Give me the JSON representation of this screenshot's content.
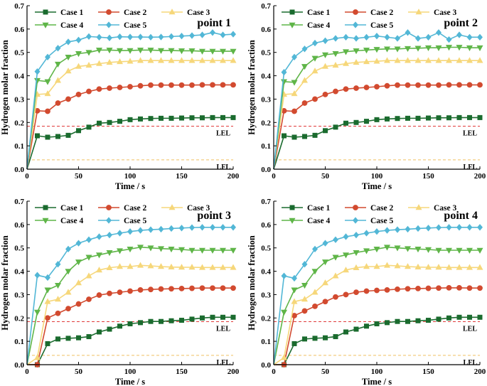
{
  "colors": {
    "Case 1": "#1a6b2e",
    "Case 2": "#d24a2f",
    "Case 3": "#f6d77a",
    "Case 4": "#5fb548",
    "Case 5": "#52b7d6",
    "LEL": "#e03a3a",
    "LFL": "#f0c060"
  },
  "chart_data": [
    {
      "type": "line",
      "title": "point 1",
      "xlabel": "Time / s",
      "ylabel": "Hydrogen molar fraction",
      "xlim": [
        0,
        200
      ],
      "ylim": [
        0,
        0.7
      ],
      "xticks": [
        0,
        50,
        100,
        150,
        200
      ],
      "yticks": [
        0,
        0.1,
        0.2,
        0.3,
        0.4,
        0.5,
        0.6,
        0.7
      ],
      "grid": false,
      "legend": "top, two rows",
      "x": [
        0,
        10,
        20,
        30,
        40,
        50,
        60,
        70,
        80,
        90,
        100,
        110,
        120,
        130,
        140,
        150,
        160,
        170,
        180,
        190,
        200
      ],
      "series": [
        {
          "name": "Case 1",
          "marker": "square",
          "values": [
            0,
            0.143,
            0.137,
            0.14,
            0.145,
            0.165,
            0.18,
            0.197,
            0.2,
            0.205,
            0.212,
            0.215,
            0.217,
            0.218,
            0.218,
            0.219,
            0.22,
            0.22,
            0.221,
            0.221,
            0.221
          ]
        },
        {
          "name": "Case 2",
          "marker": "circle",
          "values": [
            0,
            0.25,
            0.248,
            0.283,
            0.3,
            0.32,
            0.333,
            0.343,
            0.347,
            0.35,
            0.353,
            0.357,
            0.36,
            0.36,
            0.36,
            0.36,
            0.36,
            0.361,
            0.361,
            0.361,
            0.361
          ]
        },
        {
          "name": "Case 3",
          "marker": "triangle-up",
          "values": [
            0,
            0.32,
            0.323,
            0.38,
            0.42,
            0.44,
            0.445,
            0.452,
            0.457,
            0.46,
            0.462,
            0.465,
            0.465,
            0.465,
            0.465,
            0.465,
            0.465,
            0.465,
            0.465,
            0.465,
            0.465
          ]
        },
        {
          "name": "Case 4",
          "marker": "triangle-down",
          "values": [
            0,
            0.38,
            0.375,
            0.45,
            0.48,
            0.495,
            0.5,
            0.51,
            0.51,
            0.508,
            0.508,
            0.51,
            0.51,
            0.508,
            0.508,
            0.507,
            0.507,
            0.505,
            0.505,
            0.505,
            0.505
          ]
        },
        {
          "name": "Case 5",
          "marker": "diamond",
          "values": [
            0,
            0.418,
            0.48,
            0.518,
            0.545,
            0.553,
            0.568,
            0.565,
            0.562,
            0.567,
            0.566,
            0.566,
            0.565,
            0.566,
            0.568,
            0.57,
            0.572,
            0.575,
            0.585,
            0.575,
            0.578
          ]
        }
      ],
      "reference_lines": [
        {
          "label": "LEL",
          "value": 0.184
        },
        {
          "label": "LFL",
          "value": 0.04
        }
      ]
    },
    {
      "type": "line",
      "title": "point 2",
      "xlabel": "Time / s",
      "ylabel": "Hydrogen molar fraction",
      "xlim": [
        0,
        200
      ],
      "ylim": [
        0,
        0.7
      ],
      "xticks": [
        0,
        50,
        100,
        150,
        200
      ],
      "yticks": [
        0,
        0.1,
        0.2,
        0.3,
        0.4,
        0.5,
        0.6,
        0.7
      ],
      "grid": false,
      "legend": "top, two rows",
      "x": [
        0,
        10,
        20,
        30,
        40,
        50,
        60,
        70,
        80,
        90,
        100,
        110,
        120,
        130,
        140,
        150,
        160,
        170,
        180,
        190,
        200
      ],
      "series": [
        {
          "name": "Case 1",
          "marker": "square",
          "values": [
            0,
            0.143,
            0.137,
            0.14,
            0.145,
            0.165,
            0.18,
            0.197,
            0.2,
            0.205,
            0.212,
            0.215,
            0.217,
            0.218,
            0.218,
            0.219,
            0.22,
            0.22,
            0.221,
            0.221,
            0.221
          ]
        },
        {
          "name": "Case 2",
          "marker": "circle",
          "values": [
            0,
            0.25,
            0.248,
            0.283,
            0.3,
            0.32,
            0.333,
            0.343,
            0.347,
            0.35,
            0.353,
            0.357,
            0.36,
            0.36,
            0.36,
            0.36,
            0.36,
            0.361,
            0.361,
            0.361,
            0.361
          ]
        },
        {
          "name": "Case 3",
          "marker": "triangle-up",
          "values": [
            0,
            0.32,
            0.323,
            0.38,
            0.42,
            0.44,
            0.445,
            0.452,
            0.457,
            0.46,
            0.462,
            0.465,
            0.465,
            0.465,
            0.465,
            0.465,
            0.465,
            0.465,
            0.465,
            0.465,
            0.465
          ]
        },
        {
          "name": "Case 4",
          "marker": "triangle-down",
          "values": [
            0,
            0.375,
            0.372,
            0.44,
            0.475,
            0.49,
            0.495,
            0.503,
            0.507,
            0.51,
            0.513,
            0.515,
            0.515,
            0.517,
            0.518,
            0.52,
            0.52,
            0.522,
            0.522,
            0.52,
            0.52
          ]
        },
        {
          "name": "Case 5",
          "marker": "diamond",
          "values": [
            0,
            0.415,
            0.48,
            0.515,
            0.54,
            0.55,
            0.56,
            0.565,
            0.56,
            0.565,
            0.57,
            0.565,
            0.56,
            0.585,
            0.56,
            0.565,
            0.585,
            0.555,
            0.575,
            0.565,
            0.565
          ]
        }
      ],
      "reference_lines": [
        {
          "label": "LEL",
          "value": 0.184
        },
        {
          "label": "LFL",
          "value": 0.04
        }
      ]
    },
    {
      "type": "line",
      "title": "point 3",
      "xlabel": "Time / s",
      "ylabel": "Hydrogen molar fraction",
      "xlim": [
        0,
        200
      ],
      "ylim": [
        0,
        0.7
      ],
      "xticks": [
        0,
        50,
        100,
        150,
        200
      ],
      "yticks": [
        0,
        0.1,
        0.2,
        0.3,
        0.4,
        0.5,
        0.6,
        0.7
      ],
      "grid": false,
      "legend": "top, two rows",
      "x": [
        0,
        10,
        20,
        30,
        40,
        50,
        60,
        70,
        80,
        90,
        100,
        110,
        120,
        130,
        140,
        150,
        160,
        170,
        180,
        190,
        200
      ],
      "series": [
        {
          "name": "Case 1",
          "marker": "square",
          "values": [
            0,
            0,
            0.09,
            0.11,
            0.113,
            0.115,
            0.12,
            0.14,
            0.152,
            0.165,
            0.175,
            0.18,
            0.185,
            0.185,
            0.188,
            0.19,
            0.195,
            0.2,
            0.203,
            0.203,
            0.203
          ]
        },
        {
          "name": "Case 2",
          "marker": "circle",
          "values": [
            0,
            0,
            0.2,
            0.22,
            0.24,
            0.26,
            0.28,
            0.298,
            0.305,
            0.31,
            0.315,
            0.32,
            0.322,
            0.324,
            0.325,
            0.326,
            0.327,
            0.328,
            0.328,
            0.328,
            0.328
          ]
        },
        {
          "name": "Case 3",
          "marker": "triangle-up",
          "values": [
            0,
            0.03,
            0.27,
            0.28,
            0.31,
            0.35,
            0.38,
            0.405,
            0.415,
            0.42,
            0.42,
            0.425,
            0.423,
            0.42,
            0.418,
            0.417,
            0.417,
            0.416,
            0.416,
            0.416,
            0.416
          ]
        },
        {
          "name": "Case 4",
          "marker": "triangle-down",
          "values": [
            0,
            0.225,
            0.32,
            0.34,
            0.4,
            0.44,
            0.46,
            0.47,
            0.48,
            0.488,
            0.495,
            0.503,
            0.5,
            0.497,
            0.495,
            0.493,
            0.49,
            0.49,
            0.49,
            0.49,
            0.49
          ]
        },
        {
          "name": "Case 5",
          "marker": "diamond",
          "values": [
            0,
            0.383,
            0.373,
            0.43,
            0.495,
            0.52,
            0.535,
            0.548,
            0.555,
            0.563,
            0.57,
            0.575,
            0.578,
            0.58,
            0.583,
            0.585,
            0.587,
            0.588,
            0.588,
            0.588,
            0.588
          ]
        }
      ],
      "reference_lines": [
        {
          "label": "LEL",
          "value": 0.184
        },
        {
          "label": "LFL",
          "value": 0.04
        }
      ]
    },
    {
      "type": "line",
      "title": "point 4",
      "xlabel": "Time / s",
      "ylabel": "Hydrogen molar fraction",
      "xlim": [
        0,
        200
      ],
      "ylim": [
        0,
        0.7
      ],
      "xticks": [
        0,
        50,
        100,
        150,
        200
      ],
      "yticks": [
        0,
        0.1,
        0.2,
        0.3,
        0.4,
        0.5,
        0.6,
        0.7
      ],
      "grid": false,
      "legend": "top, two rows",
      "x": [
        0,
        10,
        20,
        30,
        40,
        50,
        60,
        70,
        80,
        90,
        100,
        110,
        120,
        130,
        140,
        150,
        160,
        170,
        180,
        190,
        200
      ],
      "series": [
        {
          "name": "Case 1",
          "marker": "square",
          "values": [
            0,
            0,
            0.09,
            0.11,
            0.113,
            0.115,
            0.12,
            0.14,
            0.152,
            0.165,
            0.175,
            0.18,
            0.185,
            0.185,
            0.188,
            0.19,
            0.195,
            0.2,
            0.203,
            0.203,
            0.203
          ]
        },
        {
          "name": "Case 2",
          "marker": "circle",
          "values": [
            0,
            0,
            0.21,
            0.23,
            0.25,
            0.27,
            0.29,
            0.3,
            0.31,
            0.315,
            0.318,
            0.32,
            0.323,
            0.325,
            0.326,
            0.327,
            0.328,
            0.329,
            0.329,
            0.328,
            0.328
          ]
        },
        {
          "name": "Case 3",
          "marker": "triangle-up",
          "values": [
            0,
            0.03,
            0.27,
            0.28,
            0.31,
            0.35,
            0.38,
            0.405,
            0.415,
            0.42,
            0.42,
            0.425,
            0.423,
            0.42,
            0.418,
            0.417,
            0.417,
            0.416,
            0.416,
            0.416,
            0.416
          ]
        },
        {
          "name": "Case 4",
          "marker": "triangle-down",
          "values": [
            0,
            0.225,
            0.32,
            0.34,
            0.4,
            0.44,
            0.46,
            0.47,
            0.48,
            0.488,
            0.495,
            0.503,
            0.5,
            0.497,
            0.495,
            0.493,
            0.49,
            0.49,
            0.49,
            0.49,
            0.49
          ]
        },
        {
          "name": "Case 5",
          "marker": "diamond",
          "values": [
            0,
            0.38,
            0.37,
            0.43,
            0.495,
            0.52,
            0.535,
            0.548,
            0.555,
            0.563,
            0.57,
            0.575,
            0.578,
            0.58,
            0.583,
            0.585,
            0.587,
            0.588,
            0.588,
            0.588,
            0.588
          ]
        }
      ],
      "reference_lines": [
        {
          "label": "LEL",
          "value": 0.184
        },
        {
          "label": "LFL",
          "value": 0.04
        }
      ]
    }
  ]
}
